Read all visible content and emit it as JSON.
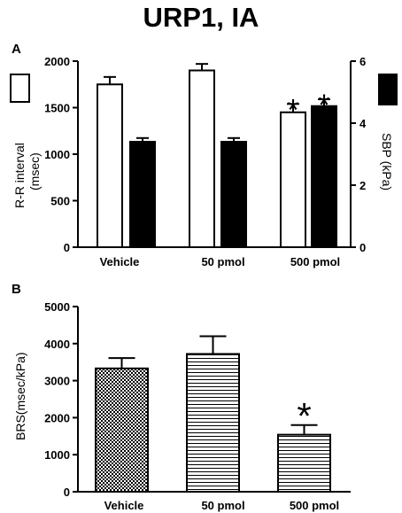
{
  "figure_title": "URP1, IA",
  "chart_data": [
    {
      "panel_label": "A",
      "type": "bar",
      "categories": [
        "Vehicle",
        "50 pmol",
        "500 pmol"
      ],
      "left_axis": {
        "label_line1": "R-R interval",
        "label_line2": "(msec)",
        "ylim": [
          0,
          2000
        ],
        "ticks": [
          "0",
          "500",
          "1000",
          "1500",
          "2000"
        ]
      },
      "right_axis": {
        "label": "SBP (kPa)",
        "ylim": [
          0,
          6
        ],
        "ticks": [
          "0",
          "2",
          "4",
          "6"
        ]
      },
      "series": [
        {
          "axis": "left",
          "fill": "#ffffff",
          "values": [
            1750,
            1900,
            1450
          ],
          "errors": [
            80,
            70,
            90
          ],
          "significant": [
            false,
            false,
            true
          ]
        },
        {
          "axis": "right",
          "fill": "#000000",
          "values": [
            3.4,
            3.4,
            4.55
          ],
          "errors": [
            0.12,
            0.12,
            0.22
          ],
          "significant": [
            false,
            false,
            true
          ]
        }
      ],
      "annotation": "*",
      "legend": "open and filled swatches beside the left and right axis labels"
    },
    {
      "panel_label": "B",
      "type": "bar",
      "categories": [
        "Vehicle",
        "50 pmol",
        "500 pmol"
      ],
      "ylabel": "BRS(msec/kPa)",
      "ylim": [
        0,
        5000
      ],
      "ticks": [
        "0",
        "1000",
        "2000",
        "3000",
        "4000",
        "5000"
      ],
      "values": [
        3330,
        3720,
        1540
      ],
      "errors": [
        280,
        480,
        260
      ],
      "patterns": [
        "checker",
        "horizontal-lines",
        "horizontal-lines"
      ],
      "significant": [
        false,
        false,
        true
      ],
      "annotation": "*"
    }
  ]
}
